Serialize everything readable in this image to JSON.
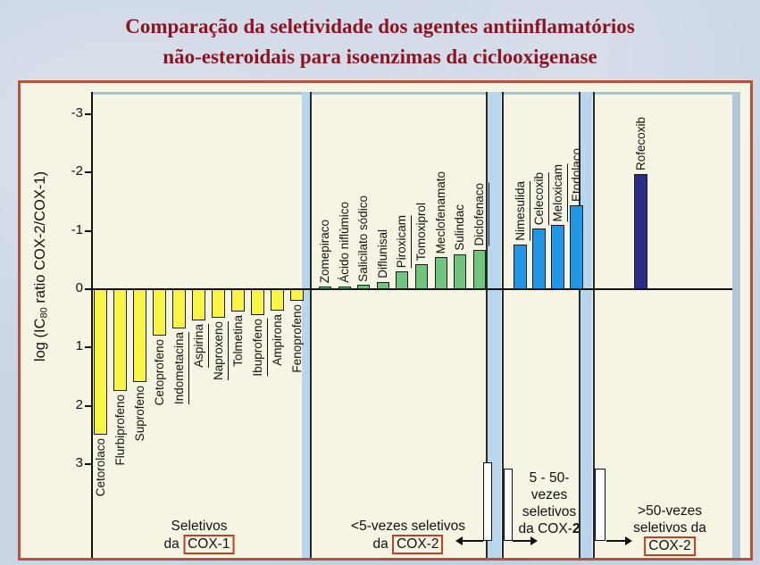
{
  "slide": {
    "title_line1": "Comparação da seletividade dos agentes antiinflamatórios",
    "title_line2": "não-esteroidais para isoenzimas da ciclooxigenase",
    "colors": {
      "title": "#8e1423",
      "frame_border": "#b5523e",
      "plot_bg": "#f6f5e3",
      "slide_bg": "#c9d4e3",
      "divider_stripe": "#b6d7ee",
      "cox1_bar": "#f8f440",
      "cox2_low_bar": "#6fc57c",
      "cox2_mid_bar": "#1e98e6",
      "cox2_high_bar": "#2b2b88",
      "red_box_border": "#c23f22",
      "axis": "#111111"
    }
  },
  "chart_data": {
    "type": "bar",
    "title": "Comparação da seletividade dos agentes antiinflamatórios não-esteroidais para isoenzimas da ciclooxigenase",
    "ylabel_prefix": "log (IC",
    "ylabel_sub": "80",
    "ylabel_suffix": " ratio COX-2/COX-1)",
    "yticks": [
      -3,
      -2,
      -1,
      0,
      1,
      2,
      3
    ],
    "ylim_top": -3.5,
    "ylim_bottom": 3.5,
    "axis_note": "y axis inverted: negative values (COX-2 selective) plotted upward, positive (COX-1 selective) downward",
    "grid": false,
    "groups": [
      {
        "name": "Seletivos da COX-1",
        "color_key": "cox1_bar",
        "bars": [
          {
            "label": "Cetorolaco",
            "value": 2.5
          },
          {
            "label": "Flurbiprofeno",
            "value": 1.75
          },
          {
            "label": "Suprofeno",
            "value": 1.6
          },
          {
            "label": "Cetoprofeno",
            "value": 0.8
          },
          {
            "label": "Indometacina",
            "value": 0.67,
            "underline": true
          },
          {
            "label": "Aspirina",
            "value": 0.54,
            "underline": true
          },
          {
            "label": "Naproxeno",
            "value": 0.49,
            "underline": true
          },
          {
            "label": "Tolmetina",
            "value": 0.39
          },
          {
            "label": "Ibuprofeno",
            "value": 0.45,
            "underline": true
          },
          {
            "label": "Ampirona",
            "value": 0.37
          },
          {
            "label": "Fenoprofeno",
            "value": 0.2
          }
        ]
      },
      {
        "name": "<5-vezes seletivos da COX-2",
        "color_key": "cox2_low_bar",
        "bars": [
          {
            "label": "Zomepiraco",
            "value": -0.04
          },
          {
            "label": "Ácido niflúmico",
            "value": -0.05
          },
          {
            "label": "Salicilato sódico",
            "value": -0.07
          },
          {
            "label": "Diflunisal",
            "value": -0.13
          },
          {
            "label": "Piroxicam",
            "value": -0.3,
            "underline": true
          },
          {
            "label": "Tomoxiprol",
            "value": -0.43
          },
          {
            "label": "Meclofenamato",
            "value": -0.55
          },
          {
            "label": "Sulindac",
            "value": -0.6
          },
          {
            "label": "Diclofenaco",
            "value": -0.68,
            "underline": true
          }
        ]
      },
      {
        "name": "5 - 50-vezes seletivos da COX-2",
        "color_key": "cox2_mid_bar",
        "bars": [
          {
            "label": "Nimesulida",
            "value": -0.77,
            "underline": true
          },
          {
            "label": "Celecoxib",
            "value": -1.04,
            "underline": true
          },
          {
            "label": "Meloxicam",
            "value": -1.1,
            "underline": true
          },
          {
            "label": "Etodolaco",
            "value": -1.44
          }
        ]
      },
      {
        "name": ">50-vezes seletivos da COX-2",
        "color_key": "cox2_high_bar",
        "bars": [
          {
            "label": "Rofecoxib",
            "value": -1.97
          }
        ]
      }
    ],
    "annotations": [
      {
        "id": "cox1",
        "lines": [
          [
            {
              "t": "Seletivos"
            }
          ],
          [
            {
              "t": "da "
            },
            {
              "t": "COX-1",
              "box": true
            }
          ]
        ]
      },
      {
        "id": "cox2lt5",
        "lines": [
          [
            {
              "t": "<5-vezes seletivos"
            }
          ],
          [
            {
              "t": "da "
            },
            {
              "t": "COX-2",
              "box": true
            }
          ]
        ]
      },
      {
        "id": "cox2mid",
        "lines": [
          [
            {
              "t": "5 - 50-"
            }
          ],
          [
            {
              "t": "vezes"
            }
          ],
          [
            {
              "t": "seletivos"
            }
          ],
          [
            {
              "t": "da COX-"
            },
            {
              "t": "2",
              "bold": true
            }
          ]
        ]
      },
      {
        "id": "cox2gt50",
        "lines": [
          [
            {
              "t": ">50-vezes"
            }
          ],
          [
            {
              "t": "seletivos da"
            }
          ],
          [
            {
              "t": "COX-2",
              "box": true
            }
          ]
        ]
      }
    ]
  }
}
